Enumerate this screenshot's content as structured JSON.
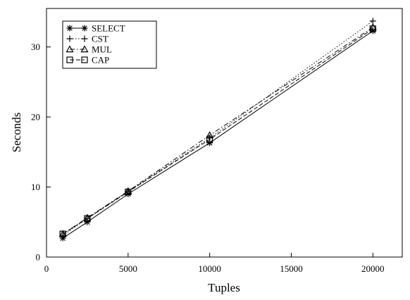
{
  "chart_data": {
    "type": "line",
    "xlabel": "Tuples",
    "ylabel": "Seconds",
    "xlim": [
      0,
      21800
    ],
    "ylim": [
      0,
      35.5
    ],
    "xticks": [
      0,
      5000,
      10000,
      15000,
      20000
    ],
    "yticks": [
      0,
      10,
      20,
      30
    ],
    "x": [
      1000,
      2500,
      5000,
      10000,
      20000
    ],
    "legend_position": "top-left",
    "grid": false,
    "series": [
      {
        "name": "SELECT",
        "marker": "asterisk",
        "dash": "solid",
        "values": [
          2.7,
          5.0,
          9.0,
          16.3,
          32.3
        ]
      },
      {
        "name": "CST",
        "marker": "plus",
        "dash": "dotted",
        "values": [
          3.1,
          5.5,
          9.4,
          17.0,
          33.7
        ]
      },
      {
        "name": "MUL",
        "marker": "triangle",
        "dash": "dashdot",
        "values": [
          3.3,
          5.6,
          9.4,
          17.4,
          32.8
        ]
      },
      {
        "name": "CAP",
        "marker": "square",
        "dash": "dashed",
        "values": [
          3.3,
          5.5,
          9.3,
          16.8,
          32.6
        ]
      }
    ]
  }
}
